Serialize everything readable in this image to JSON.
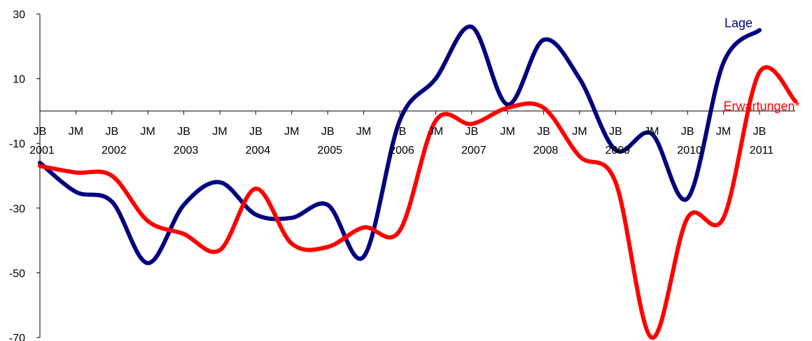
{
  "chart_data": {
    "type": "line",
    "ylim": [
      -70,
      30
    ],
    "yticks": [
      30,
      10,
      -10,
      -30,
      -50,
      -70
    ],
    "x_labels_row1": [
      "JB",
      "JM",
      "JB",
      "JM",
      "JB",
      "JM",
      "JB",
      "JM",
      "JB",
      "JM",
      "JB",
      "JM",
      "JB",
      "JM",
      "JB",
      "JM",
      "JB",
      "JM",
      "JB",
      "JM",
      "JB"
    ],
    "x_labels_row2": [
      "2001",
      "",
      "2002",
      "",
      "2003",
      "",
      "2004",
      "",
      "2005",
      "",
      "2006",
      "",
      "2007",
      "",
      "2008",
      "",
      "2009",
      "",
      "2010",
      "",
      "2011"
    ],
    "series": [
      {
        "name": "Lage",
        "color": "#000080",
        "values": [
          -16,
          -25,
          -28,
          -47,
          -29,
          -22,
          -32,
          -33,
          -29,
          -45,
          -3,
          10,
          26,
          2,
          22,
          10,
          -12,
          -7,
          -27,
          15,
          25
        ]
      },
      {
        "name": "Erwartungen*",
        "color": "#ff0000",
        "values": [
          -17,
          -19,
          -20,
          -34,
          -38,
          -43,
          -24,
          -41,
          -42,
          -36,
          -37,
          -3,
          -4,
          1,
          1,
          -14,
          -22,
          -70,
          -33,
          -33,
          12,
          3
        ]
      }
    ]
  }
}
